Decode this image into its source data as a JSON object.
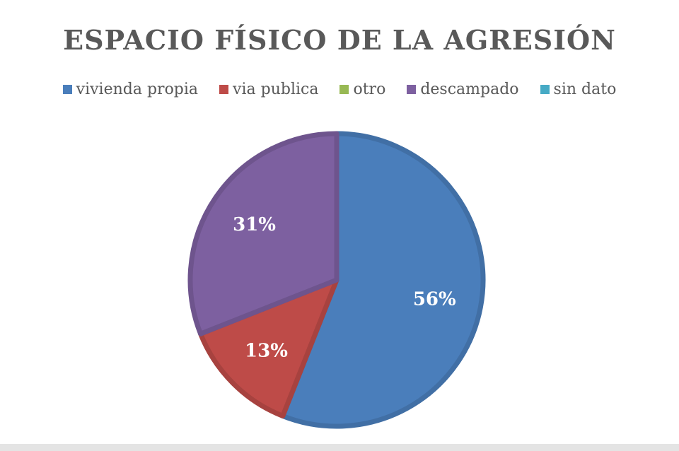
{
  "chart_data": {
    "type": "pie",
    "title": "ESPACIO FÍSICO DE LA AGRESIÓN",
    "legend_position": "top",
    "series": [
      {
        "name": "vivienda propia",
        "value": 56,
        "label": "56%",
        "color": "#4a7ebb"
      },
      {
        "name": "via publica",
        "value": 13,
        "label": "13%",
        "color": "#be4b48"
      },
      {
        "name": "otro",
        "value": 0,
        "label": "",
        "color": "#98b954"
      },
      {
        "name": "descampado",
        "value": 31,
        "label": "31%",
        "color": "#7d60a0"
      },
      {
        "name": "sin dato",
        "value": 0,
        "label": "",
        "color": "#46aac5"
      }
    ]
  }
}
